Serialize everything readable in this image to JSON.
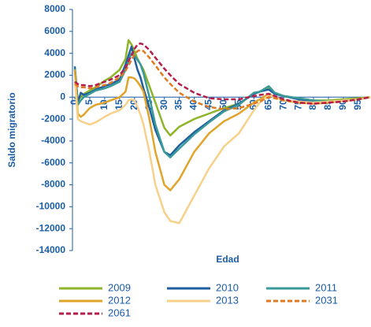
{
  "chart_data": {
    "type": "line",
    "y_label": "Saldo migratorio",
    "x_label": "Edad",
    "x": [
      0,
      1,
      2,
      3,
      5,
      7,
      10,
      12,
      15,
      17,
      18,
      19,
      20,
      21,
      22,
      23,
      25,
      27,
      30,
      32,
      35,
      40,
      45,
      50,
      55,
      60,
      62,
      65,
      67,
      70,
      75,
      80,
      85,
      90,
      95,
      99
    ],
    "xlim": [
      0,
      99
    ],
    "xticks": [
      0,
      5,
      10,
      15,
      20,
      25,
      30,
      35,
      40,
      45,
      50,
      55,
      60,
      65,
      70,
      75,
      80,
      85,
      90,
      95
    ],
    "ylim": [
      -14000,
      8000
    ],
    "yticks": [
      -14000,
      -12000,
      -10000,
      -8000,
      -6000,
      -4000,
      -2000,
      0,
      2000,
      4000,
      6000,
      8000
    ],
    "series": [
      {
        "name": "2009",
        "color": "#8db52a",
        "style": "solid",
        "values": [
          2500,
          -300,
          0,
          300,
          600,
          900,
          1500,
          1800,
          2500,
          3500,
          5200,
          4800,
          4200,
          3500,
          3000,
          2500,
          1000,
          -500,
          -2800,
          -3500,
          -2700,
          -2000,
          -1500,
          -1000,
          -600,
          300,
          500,
          800,
          400,
          100,
          -100,
          -300,
          -300,
          -200,
          -100,
          0
        ]
      },
      {
        "name": "2010",
        "color": "#1f5fa0",
        "style": "solid",
        "values": [
          2800,
          -500,
          400,
          200,
          400,
          700,
          1000,
          1200,
          1600,
          3000,
          3800,
          4600,
          3500,
          2500,
          1800,
          800,
          -1000,
          -3000,
          -5000,
          -5300,
          -4400,
          -3200,
          -2200,
          -1200,
          -600,
          300,
          500,
          700,
          300,
          100,
          -200,
          -400,
          -400,
          -300,
          -200,
          0
        ]
      },
      {
        "name": "2011",
        "color": "#3a9a9a",
        "style": "solid",
        "values": [
          2600,
          -700,
          -300,
          0,
          300,
          600,
          800,
          1000,
          1400,
          2500,
          3300,
          4000,
          3800,
          3400,
          3000,
          2200,
          0,
          -2500,
          -5000,
          -5500,
          -4700,
          -3400,
          -2300,
          -1300,
          -700,
          400,
          500,
          1000,
          400,
          100,
          -100,
          -300,
          -400,
          -300,
          -200,
          0
        ]
      },
      {
        "name": "2012",
        "color": "#e0a42a",
        "style": "solid",
        "values": [
          2500,
          -1500,
          -1800,
          -1600,
          -1000,
          -700,
          -500,
          -300,
          0,
          500,
          1800,
          1800,
          1700,
          1400,
          1000,
          500,
          -2000,
          -5000,
          -8000,
          -8500,
          -7500,
          -5000,
          -3300,
          -2200,
          -1500,
          -500,
          -200,
          300,
          0,
          -300,
          -500,
          -600,
          -500,
          -300,
          -200,
          0
        ]
      },
      {
        "name": "2013",
        "color": "#f7d08a",
        "style": "solid",
        "values": [
          1500,
          -2000,
          -2200,
          -2300,
          -2500,
          -2300,
          -1800,
          -1500,
          -1200,
          -700,
          -300,
          -200,
          -300,
          -900,
          -1600,
          -2500,
          -5000,
          -8000,
          -10500,
          -11300,
          -11500,
          -9000,
          -6500,
          -4500,
          -3300,
          -1200,
          -500,
          200,
          0,
          -300,
          -400,
          -500,
          -400,
          -300,
          -200,
          0
        ]
      },
      {
        "name": "2031",
        "color": "#e07a20",
        "style": "dashed",
        "values": [
          1200,
          1000,
          900,
          900,
          800,
          900,
          1100,
          1300,
          1800,
          2400,
          2900,
          3400,
          3900,
          4200,
          4300,
          4200,
          3600,
          2900,
          1800,
          1200,
          400,
          -400,
          -900,
          -1100,
          -1000,
          -600,
          -400,
          0,
          -100,
          -300,
          -500,
          -600,
          -500,
          -400,
          -200,
          0
        ]
      },
      {
        "name": "2061",
        "color": "#b51d4a",
        "style": "dashed",
        "values": [
          1400,
          1200,
          1100,
          1100,
          1000,
          1100,
          1400,
          1600,
          2000,
          2700,
          3300,
          3800,
          4400,
          4800,
          4900,
          4800,
          4300,
          3600,
          2600,
          2000,
          1200,
          400,
          -100,
          -200,
          -200,
          100,
          200,
          300,
          100,
          -200,
          -500,
          -600,
          -500,
          -400,
          -200,
          0
        ]
      }
    ]
  }
}
